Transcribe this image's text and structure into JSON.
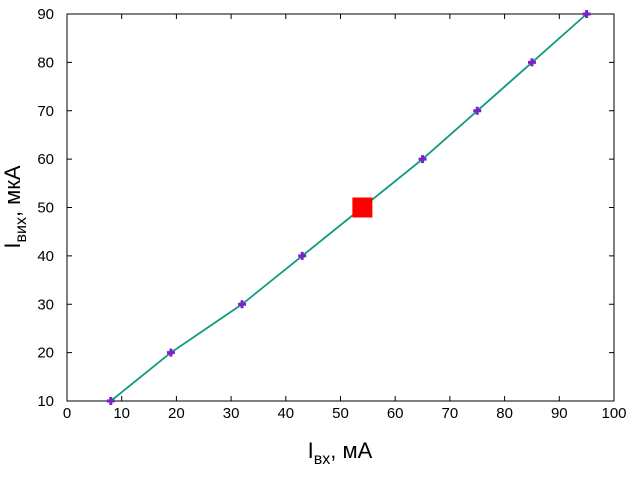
{
  "chart_data": {
    "type": "line",
    "title": "",
    "xlabel": {
      "main": "I",
      "sub": "вх",
      "rest": ", мА"
    },
    "ylabel": {
      "main": "I",
      "sub": "вих",
      "rest": ", мкА"
    },
    "xlim": [
      0,
      100
    ],
    "ylim": [
      10,
      90
    ],
    "xticks": [
      0,
      10,
      20,
      30,
      40,
      50,
      60,
      70,
      80,
      90,
      100
    ],
    "yticks": [
      10,
      20,
      30,
      40,
      50,
      60,
      70,
      80,
      90
    ],
    "grid": false,
    "series": [
      {
        "kind": "line",
        "color": "#119a7f",
        "x": [
          8,
          19,
          32,
          43,
          54,
          65,
          75,
          85,
          95
        ],
        "y": [
          10,
          20,
          30,
          40,
          50,
          60,
          70,
          80,
          90
        ]
      },
      {
        "kind": "markers",
        "marker": "plus",
        "color": "#7b22c8",
        "x": [
          8,
          19,
          32,
          43,
          65,
          75,
          85,
          95
        ],
        "y": [
          10,
          20,
          30,
          40,
          60,
          70,
          80,
          90
        ]
      },
      {
        "kind": "markers",
        "marker": "square",
        "color": "#ff0000",
        "x": [
          54
        ],
        "y": [
          50
        ]
      }
    ]
  }
}
